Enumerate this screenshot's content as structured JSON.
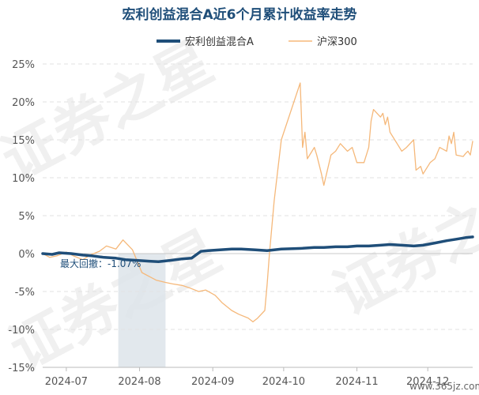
{
  "chart_data": {
    "type": "line",
    "title": "宏利创益混合A近6个月累计收益率走势",
    "ylim": [
      -15,
      25
    ],
    "yticks": [
      "25%",
      "20%",
      "15%",
      "10%",
      "5%",
      "0%",
      "-5%",
      "-10%",
      "-15%"
    ],
    "x_ticks": [
      "2024-07",
      "2024-08",
      "2024-09",
      "2024-10",
      "2024-11",
      "2024-12"
    ],
    "xlim": [
      "2024-06-21",
      "2024-12-20"
    ],
    "grid": true,
    "legend": "top-center",
    "series": [
      {
        "name": "宏利创益混合A",
        "color": "#1f4e79",
        "points": [
          [
            "2024-06-21",
            0.0
          ],
          [
            "2024-06-25",
            -0.1
          ],
          [
            "2024-06-28",
            0.1
          ],
          [
            "2024-07-03",
            0.0
          ],
          [
            "2024-07-08",
            -0.2
          ],
          [
            "2024-07-12",
            -0.3
          ],
          [
            "2024-07-17",
            -0.5
          ],
          [
            "2024-07-22",
            -0.6
          ],
          [
            "2024-07-26",
            -0.8
          ],
          [
            "2024-07-31",
            -0.9
          ],
          [
            "2024-08-05",
            -1.0
          ],
          [
            "2024-08-09",
            -1.07
          ],
          [
            "2024-08-14",
            -0.9
          ],
          [
            "2024-08-19",
            -0.7
          ],
          [
            "2024-08-23",
            -0.6
          ],
          [
            "2024-08-27",
            0.3
          ],
          [
            "2024-08-30",
            0.4
          ],
          [
            "2024-09-04",
            0.5
          ],
          [
            "2024-09-09",
            0.6
          ],
          [
            "2024-09-13",
            0.6
          ],
          [
            "2024-09-19",
            0.5
          ],
          [
            "2024-09-24",
            0.4
          ],
          [
            "2024-09-30",
            0.6
          ],
          [
            "2024-10-09",
            0.7
          ],
          [
            "2024-10-14",
            0.8
          ],
          [
            "2024-10-18",
            0.8
          ],
          [
            "2024-10-23",
            0.9
          ],
          [
            "2024-10-28",
            0.9
          ],
          [
            "2024-11-01",
            1.0
          ],
          [
            "2024-11-06",
            1.0
          ],
          [
            "2024-11-11",
            1.1
          ],
          [
            "2024-11-15",
            1.2
          ],
          [
            "2024-11-20",
            1.1
          ],
          [
            "2024-11-25",
            1.0
          ],
          [
            "2024-11-29",
            1.1
          ],
          [
            "2024-12-04",
            1.4
          ],
          [
            "2024-12-09",
            1.7
          ],
          [
            "2024-12-13",
            1.9
          ],
          [
            "2024-12-17",
            2.1
          ],
          [
            "2024-12-20",
            2.2
          ]
        ]
      },
      {
        "name": "沪深300",
        "color": "#f5b87a",
        "points": [
          [
            "2024-06-21",
            0.0
          ],
          [
            "2024-06-24",
            -0.5
          ],
          [
            "2024-06-27",
            -0.3
          ],
          [
            "2024-07-01",
            0.2
          ],
          [
            "2024-07-04",
            -0.3
          ],
          [
            "2024-07-08",
            -0.8
          ],
          [
            "2024-07-11",
            -0.2
          ],
          [
            "2024-07-15",
            0.3
          ],
          [
            "2024-07-18",
            1.0
          ],
          [
            "2024-07-22",
            0.6
          ],
          [
            "2024-07-25",
            1.8
          ],
          [
            "2024-07-29",
            0.5
          ],
          [
            "2024-07-31",
            -1.0
          ],
          [
            "2024-08-02",
            -2.5
          ],
          [
            "2024-08-05",
            -3.0
          ],
          [
            "2024-08-08",
            -3.5
          ],
          [
            "2024-08-12",
            -3.8
          ],
          [
            "2024-08-15",
            -4.0
          ],
          [
            "2024-08-19",
            -4.2
          ],
          [
            "2024-08-22",
            -4.5
          ],
          [
            "2024-08-26",
            -5.0
          ],
          [
            "2024-08-29",
            -4.8
          ],
          [
            "2024-09-02",
            -5.5
          ],
          [
            "2024-09-05",
            -6.5
          ],
          [
            "2024-09-09",
            -7.5
          ],
          [
            "2024-09-12",
            -8.0
          ],
          [
            "2024-09-16",
            -8.5
          ],
          [
            "2024-09-18",
            -9.0
          ],
          [
            "2024-09-20",
            -8.5
          ],
          [
            "2024-09-23",
            -7.5
          ],
          [
            "2024-09-24",
            -4.0
          ],
          [
            "2024-09-25",
            0.0
          ],
          [
            "2024-09-26",
            3.5
          ],
          [
            "2024-09-27",
            7.0
          ],
          [
            "2024-09-30",
            15.0
          ],
          [
            "2024-10-08",
            22.5
          ],
          [
            "2024-10-09",
            14.0
          ],
          [
            "2024-10-10",
            16.0
          ],
          [
            "2024-10-11",
            12.5
          ],
          [
            "2024-10-14",
            14.0
          ],
          [
            "2024-10-15",
            13.0
          ],
          [
            "2024-10-17",
            10.5
          ],
          [
            "2024-10-18",
            9.0
          ],
          [
            "2024-10-21",
            13.0
          ],
          [
            "2024-10-23",
            13.5
          ],
          [
            "2024-10-25",
            14.5
          ],
          [
            "2024-10-28",
            13.5
          ],
          [
            "2024-10-30",
            14.0
          ],
          [
            "2024-11-01",
            12.0
          ],
          [
            "2024-11-04",
            12.0
          ],
          [
            "2024-11-06",
            14.0
          ],
          [
            "2024-11-07",
            17.5
          ],
          [
            "2024-11-08",
            19.0
          ],
          [
            "2024-11-11",
            18.0
          ],
          [
            "2024-11-12",
            18.5
          ],
          [
            "2024-11-13",
            17.0
          ],
          [
            "2024-11-14",
            18.0
          ],
          [
            "2024-11-15",
            16.0
          ],
          [
            "2024-11-18",
            14.5
          ],
          [
            "2024-11-20",
            13.5
          ],
          [
            "2024-11-22",
            14.0
          ],
          [
            "2024-11-25",
            15.0
          ],
          [
            "2024-11-26",
            11.0
          ],
          [
            "2024-11-28",
            11.5
          ],
          [
            "2024-11-29",
            10.5
          ],
          [
            "2024-12-02",
            12.0
          ],
          [
            "2024-12-04",
            12.5
          ],
          [
            "2024-12-06",
            14.0
          ],
          [
            "2024-12-09",
            13.5
          ],
          [
            "2024-12-10",
            15.5
          ],
          [
            "2024-12-11",
            14.5
          ],
          [
            "2024-12-12",
            16.0
          ],
          [
            "2024-12-13",
            13.0
          ],
          [
            "2024-12-16",
            12.8
          ],
          [
            "2024-12-17",
            13.2
          ],
          [
            "2024-12-18",
            13.5
          ],
          [
            "2024-12-19",
            13.0
          ],
          [
            "2024-12-20",
            14.8
          ]
        ]
      }
    ],
    "max_drawdown": {
      "label": "最大回撤：-1.07%",
      "start": "2024-07-23",
      "end": "2024-08-12"
    }
  },
  "watermark": {
    "text": "证券之星",
    "url": "www.365jz.com"
  }
}
